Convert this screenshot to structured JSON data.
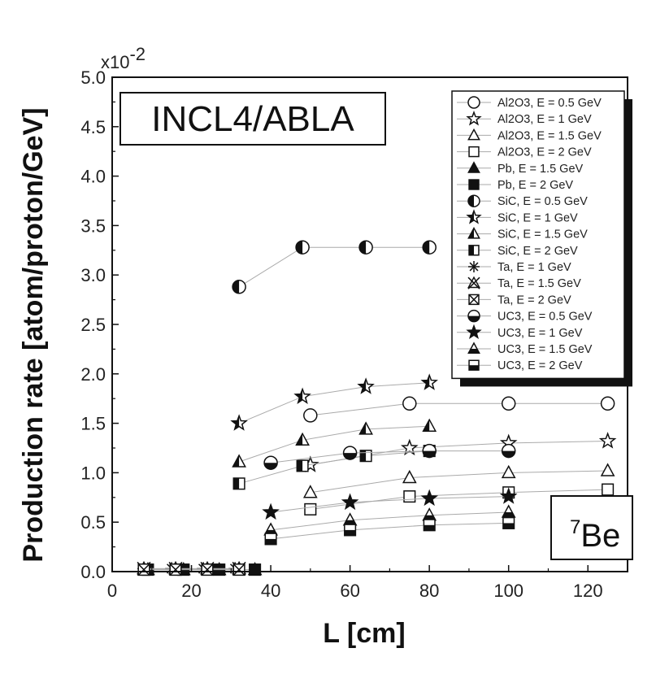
{
  "chart_data": {
    "type": "scatter",
    "title": "",
    "xlabel": "L [cm]",
    "ylabel": "Production rate [atom/proton/GeV]",
    "y_multiplier": "x10-2",
    "y_multiplier_base": "x10",
    "y_multiplier_exp": "-2",
    "xlim": [
      0,
      130
    ],
    "ylim": [
      0,
      5.0
    ],
    "xticks": [
      0,
      20,
      40,
      60,
      80,
      100,
      120
    ],
    "yticks": [
      0.0,
      0.5,
      1.0,
      1.5,
      2.0,
      2.5,
      3.0,
      3.5,
      4.0,
      4.5,
      5.0
    ],
    "ytick_labels": [
      "0.0",
      "0.5",
      "1.0",
      "1.5",
      "2.0",
      "2.5",
      "3.0",
      "3.5",
      "4.0",
      "4.5",
      "5.0"
    ],
    "model_label": "INCL4/ABLA",
    "isotope_mass": "7",
    "isotope_symbol": "Be",
    "legend_position": "top-right",
    "grid": false,
    "series": [
      {
        "name": "Al2O3, E = 0.5 GeV",
        "marker": "circle-open",
        "x": [
          50,
          75,
          100,
          125
        ],
        "y": [
          1.58,
          1.7,
          1.7,
          1.7
        ]
      },
      {
        "name": "Al2O3, E = 1 GeV",
        "marker": "star-open",
        "x": [
          50,
          75,
          100,
          125
        ],
        "y": [
          1.08,
          1.25,
          1.3,
          1.32
        ]
      },
      {
        "name": "Al2O3, E = 1.5 GeV",
        "marker": "triangle-open",
        "x": [
          50,
          75,
          100,
          125
        ],
        "y": [
          0.8,
          0.95,
          1.0,
          1.02
        ]
      },
      {
        "name": "Al2O3, E = 2 GeV",
        "marker": "square-open",
        "x": [
          50,
          75,
          100,
          125
        ],
        "y": [
          0.63,
          0.76,
          0.8,
          0.83
        ]
      },
      {
        "name": "Pb, E = 1.5 GeV",
        "marker": "triangle-filled",
        "x": [
          9,
          18,
          27,
          36
        ],
        "y": [
          0.02,
          0.02,
          0.02,
          0.02
        ]
      },
      {
        "name": "Pb, E = 2 GeV",
        "marker": "square-filled",
        "x": [
          9,
          18,
          27,
          36
        ],
        "y": [
          0.02,
          0.02,
          0.02,
          0.02
        ]
      },
      {
        "name": "SiC, E = 0.5 GeV",
        "marker": "circle-half-left",
        "x": [
          32,
          48,
          64,
          80
        ],
        "y": [
          2.88,
          3.28,
          3.28,
          3.28
        ]
      },
      {
        "name": "SiC, E = 1 GeV",
        "marker": "star-half",
        "x": [
          32,
          48,
          64,
          80
        ],
        "y": [
          1.5,
          1.77,
          1.87,
          1.91
        ]
      },
      {
        "name": "SiC, E = 1.5 GeV",
        "marker": "triangle-half-left",
        "x": [
          32,
          48,
          64,
          80
        ],
        "y": [
          1.11,
          1.33,
          1.44,
          1.47
        ]
      },
      {
        "name": "SiC, E = 2 GeV",
        "marker": "square-half-left",
        "x": [
          32,
          48,
          64,
          80
        ],
        "y": [
          0.89,
          1.07,
          1.17,
          1.22
        ]
      },
      {
        "name": "Ta, E = 1 GeV",
        "marker": "asterisk",
        "x": [
          8,
          15,
          23,
          31
        ],
        "y": [
          0.03,
          0.03,
          0.03,
          0.03
        ]
      },
      {
        "name": "Ta, E = 1.5 GeV",
        "marker": "triangle-cross",
        "x": [
          8,
          16,
          24,
          32
        ],
        "y": [
          0.03,
          0.03,
          0.03,
          0.03
        ]
      },
      {
        "name": "Ta, E = 2 GeV",
        "marker": "square-cross",
        "x": [
          8,
          16,
          24,
          32
        ],
        "y": [
          0.02,
          0.02,
          0.02,
          0.02
        ]
      },
      {
        "name": "UC3, E = 0.5 GeV",
        "marker": "circle-half-bottom",
        "x": [
          40,
          60,
          80,
          100
        ],
        "y": [
          1.1,
          1.2,
          1.22,
          1.22
        ]
      },
      {
        "name": "UC3, E = 1 GeV",
        "marker": "star-filled",
        "x": [
          40,
          60,
          80,
          100
        ],
        "y": [
          0.6,
          0.7,
          0.74,
          0.76
        ]
      },
      {
        "name": "UC3, E = 1.5 GeV",
        "marker": "triangle-half-bottom",
        "x": [
          40,
          60,
          80,
          100
        ],
        "y": [
          0.42,
          0.52,
          0.57,
          0.6
        ]
      },
      {
        "name": "UC3, E = 2 GeV",
        "marker": "square-half-bottom",
        "x": [
          40,
          60,
          80,
          100
        ],
        "y": [
          0.33,
          0.42,
          0.47,
          0.49
        ]
      }
    ]
  }
}
